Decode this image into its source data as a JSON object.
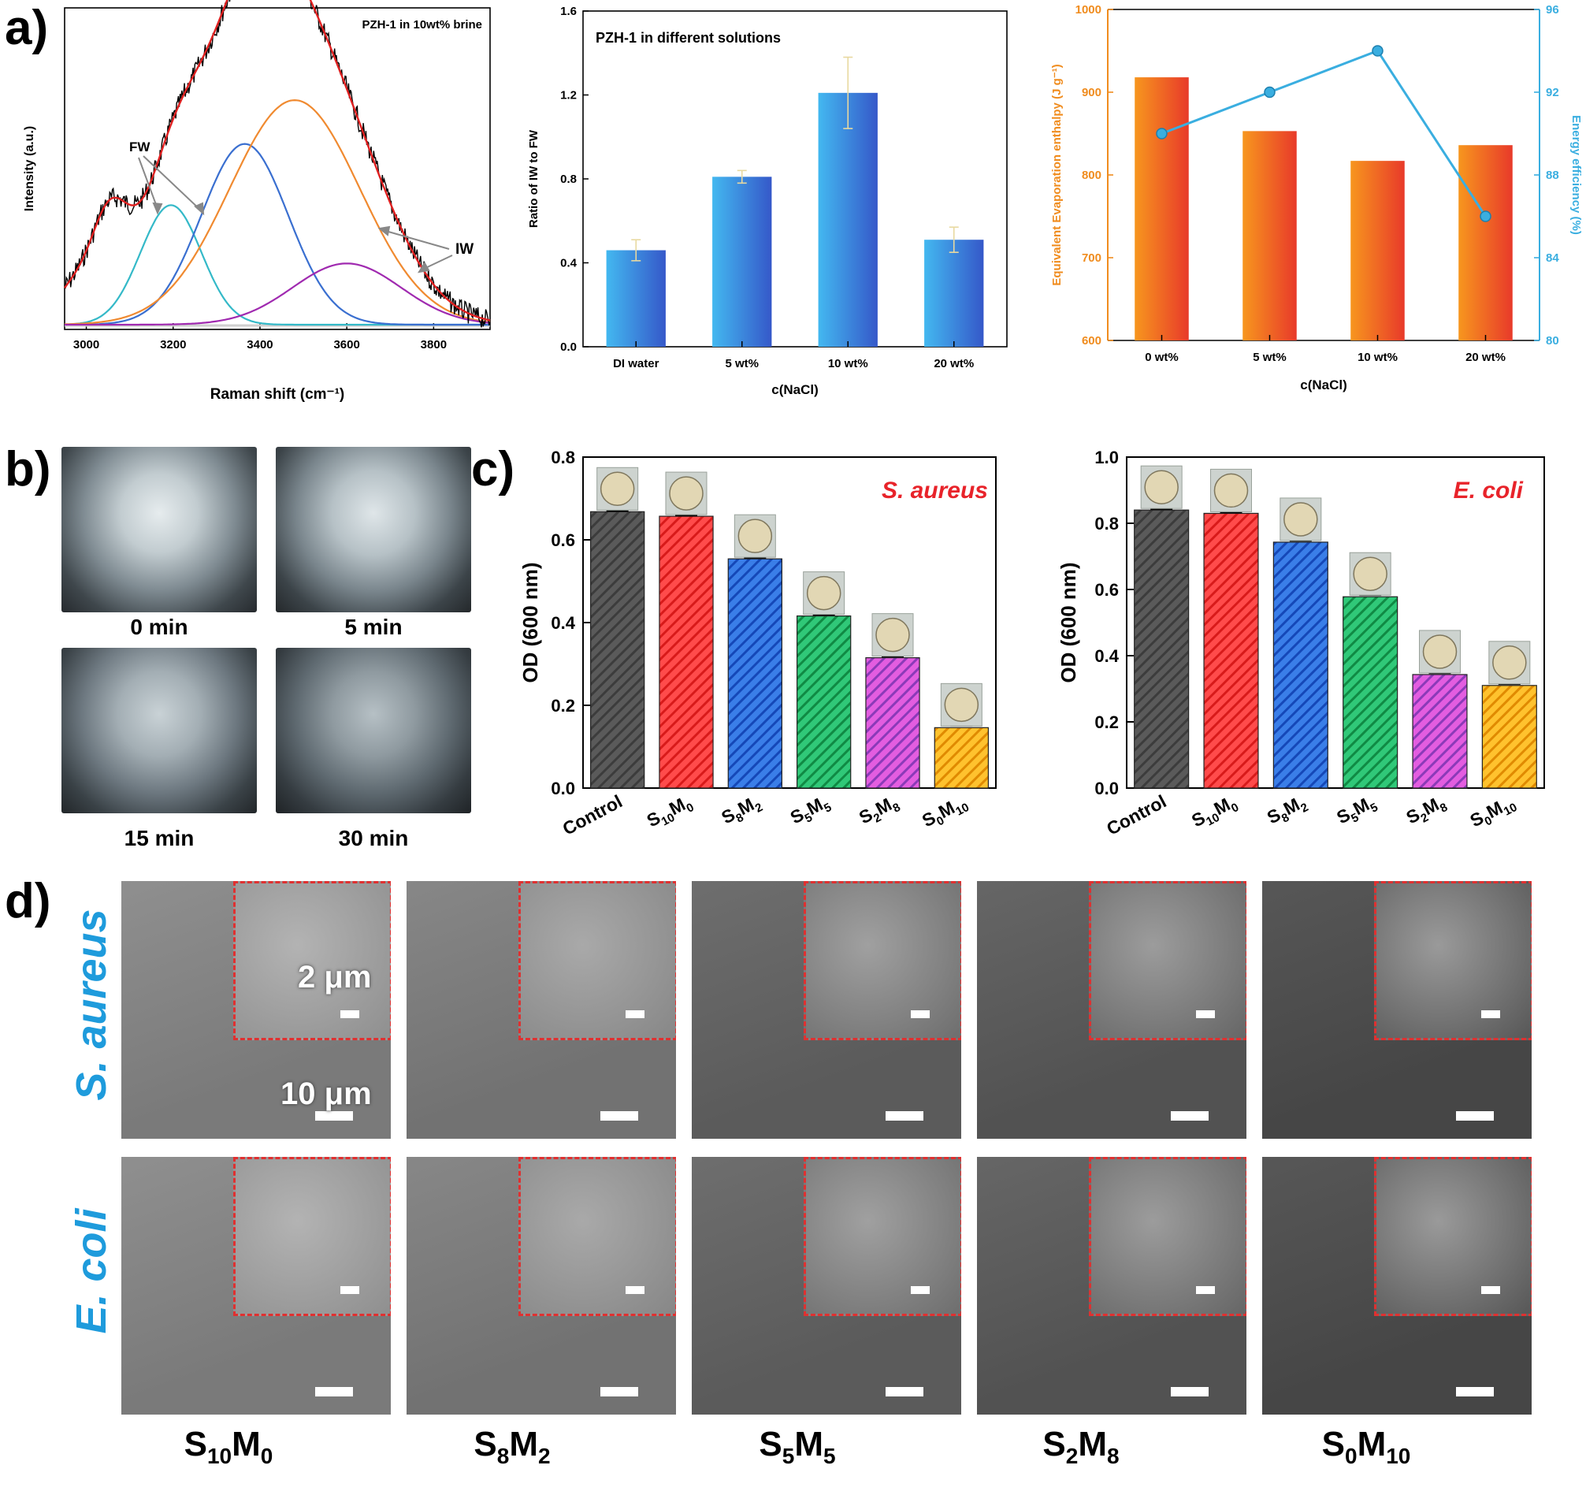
{
  "panel_letters": {
    "a": "a)",
    "b": "b)",
    "c": "c)",
    "d": "d)"
  },
  "chart_data": [
    {
      "type": "line",
      "id": "raman",
      "title": "PZH-1 in 10wt% brine",
      "xlabel": "Raman shift (cm⁻¹)",
      "ylabel": "Intensity (a.u.)",
      "xlim": [
        2950,
        3930
      ],
      "xticks": [
        3000,
        3200,
        3400,
        3600,
        3800
      ],
      "annotations": [
        "FW",
        "IW"
      ],
      "components": [
        {
          "name": "cyan",
          "color": "#34b9c8",
          "center": 3195,
          "amp": 0.41,
          "sigma": 70
        },
        {
          "name": "blue",
          "color": "#3a6fd0",
          "center": 3365,
          "amp": 0.62,
          "sigma": 100
        },
        {
          "name": "orange",
          "color": "#f08a30",
          "center": 3480,
          "amp": 0.77,
          "sigma": 150
        },
        {
          "name": "purple",
          "color": "#a02ab0",
          "center": 3600,
          "amp": 0.21,
          "sigma": 125
        }
      ]
    },
    {
      "type": "bar",
      "id": "ratio",
      "title": "PZH-1 in different solutions",
      "categories": [
        "DI water",
        "5 wt%",
        "10 wt%",
        "20 wt%"
      ],
      "values": [
        0.46,
        0.81,
        1.21,
        0.51
      ],
      "errors": [
        0.05,
        0.03,
        0.17,
        0.06
      ],
      "ylim": [
        0.0,
        1.6
      ],
      "yticks": [
        "0.0",
        "0.4",
        "0.8",
        "1.2",
        "1.6"
      ],
      "xlabel": "c(NaCl)",
      "ylabel": "Ratio of IW to FW"
    },
    {
      "type": "bar",
      "id": "enthalpy",
      "categories": [
        "0 wt%",
        "5 wt%",
        "10 wt%",
        "20 wt%"
      ],
      "values": [
        918,
        853,
        817,
        836
      ],
      "ylim": [
        600,
        1000
      ],
      "yticks": [
        "600",
        "700",
        "800",
        "900",
        "1000"
      ],
      "xlabel": "c(NaCl)",
      "ylabel": "Equivalent Evaporation enthalpy (J g⁻¹)",
      "series2": {
        "name": "Energy efficiency",
        "values": [
          90.0,
          92.0,
          94.0,
          86.0
        ],
        "ylim": [
          80,
          96
        ],
        "yticks": [
          "80",
          "84",
          "88",
          "92",
          "96"
        ],
        "ylabel": "Energy efficiency (%)"
      }
    },
    {
      "type": "bar",
      "id": "saureus",
      "title": "S. aureus",
      "categories": [
        "Control",
        "S10M0",
        "S8M2",
        "S5M5",
        "S2M8",
        "S0M10"
      ],
      "category_labels": [
        [
          "Control",
          "",
          "",
          ""
        ],
        [
          "S",
          "10",
          "M",
          "0"
        ],
        [
          "S",
          "8",
          "M",
          "2"
        ],
        [
          "S",
          "5",
          "M",
          "5"
        ],
        [
          "S",
          "2",
          "M",
          "8"
        ],
        [
          "S",
          "0",
          "M",
          "10"
        ]
      ],
      "values": [
        0.668,
        0.657,
        0.554,
        0.416,
        0.315,
        0.146
      ],
      "errors": [
        0.002,
        0.002,
        0.003,
        0.003,
        0.003,
        0.005
      ],
      "ylim": [
        0.0,
        0.8
      ],
      "yticks": [
        "0.0",
        "0.2",
        "0.4",
        "0.6",
        "0.8"
      ],
      "ylabel": "OD (600 nm)"
    },
    {
      "type": "bar",
      "id": "ecoli",
      "title": "E. coli",
      "categories": [
        "Control",
        "S10M0",
        "S8M2",
        "S5M5",
        "S2M8",
        "S0M10"
      ],
      "category_labels": [
        [
          "Control",
          "",
          "",
          ""
        ],
        [
          "S",
          "10",
          "M",
          "0"
        ],
        [
          "S",
          "8",
          "M",
          "2"
        ],
        [
          "S",
          "5",
          "M",
          "5"
        ],
        [
          "S",
          "2",
          "M",
          "8"
        ],
        [
          "S",
          "0",
          "M",
          "10"
        ]
      ],
      "values": [
        0.84,
        0.83,
        0.743,
        0.578,
        0.343,
        0.31
      ],
      "errors": [
        0.003,
        0.003,
        0.004,
        0.005,
        0.004,
        0.004
      ],
      "ylim": [
        0.0,
        1.0
      ],
      "yticks": [
        "0.0",
        "0.2",
        "0.4",
        "0.6",
        "0.8",
        "1.0"
      ],
      "ylabel": "OD (600 nm)"
    }
  ],
  "photos_b": {
    "labels": [
      "0 min",
      "5 min",
      "15 min",
      "30 min"
    ]
  },
  "sem_d": {
    "rows": [
      "S. aureus",
      "E. coli"
    ],
    "columns": [
      [
        "S",
        "10",
        "M",
        "0"
      ],
      [
        "S",
        "8",
        "M",
        "2"
      ],
      [
        "S",
        "5",
        "M",
        "5"
      ],
      [
        "S",
        "2",
        "M",
        "8"
      ],
      [
        "S",
        "0",
        "M",
        "10"
      ]
    ],
    "scale_inset": "2 μm",
    "scale_main": "10 μm"
  },
  "colors": {
    "sem_border": "#e03030",
    "row_label": "#1e9bdc",
    "title_red": "#e8232a",
    "energy_line": "#3aaee0"
  }
}
